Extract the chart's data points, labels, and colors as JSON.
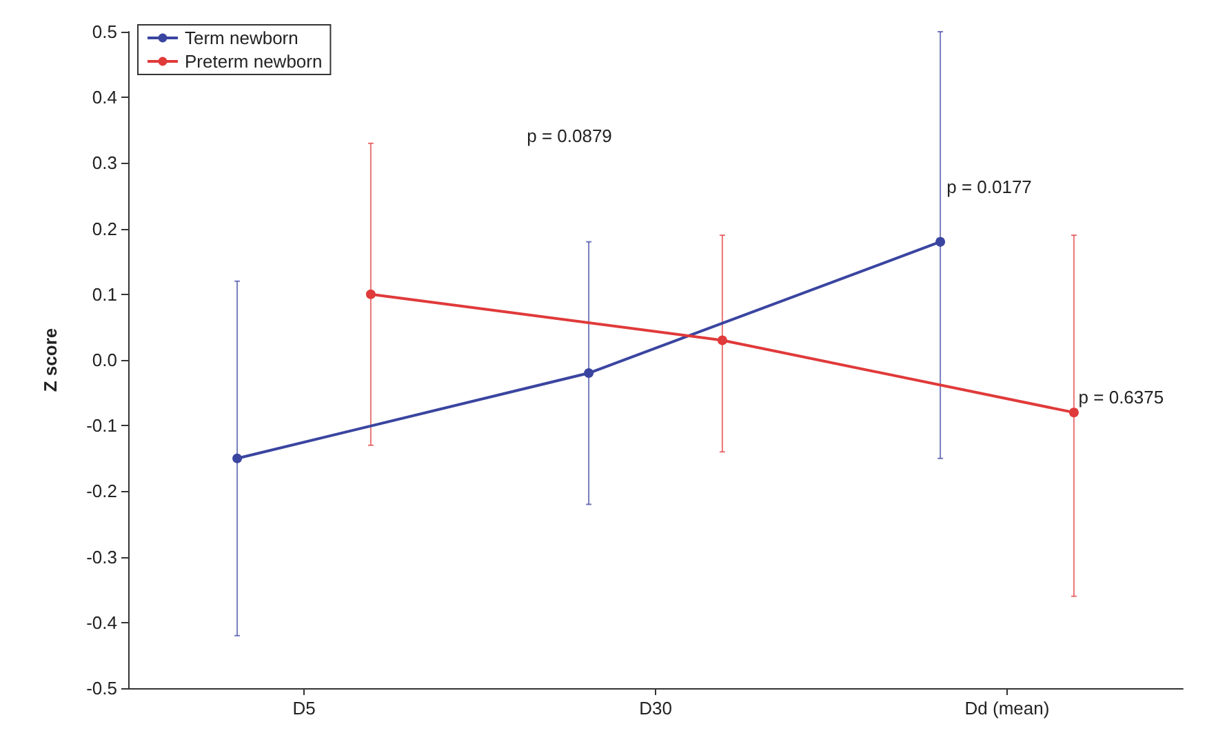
{
  "chart_data": {
    "type": "line",
    "ylabel": "Z score",
    "categories": [
      "D5",
      "D30",
      "Dd (mean)"
    ],
    "series": [
      {
        "name": "Term newborn",
        "color": "#3a45a0",
        "values": [
          -0.15,
          -0.02,
          0.18
        ],
        "errors": [
          [
            -0.42,
            0.12
          ],
          [
            -0.22,
            0.18
          ],
          [
            -0.15,
            0.5
          ]
        ]
      },
      {
        "name": "Preterm newborn",
        "color": "#e03a3a",
        "values": [
          0.1,
          0.03,
          -0.08
        ],
        "errors": [
          [
            -0.13,
            0.33
          ],
          [
            -0.14,
            0.19
          ],
          [
            -0.36,
            0.19
          ]
        ]
      }
    ],
    "ylim": [
      -0.5,
      0.5
    ],
    "yticks": [
      -0.5,
      -0.4,
      -0.3,
      -0.2,
      -0.1,
      {
        "value": 0,
        "label": "0.0"
      },
      0.1,
      0.2,
      0.3,
      0.4,
      0.5
    ],
    "marker": "circle",
    "legend": "top left",
    "grid": false,
    "annotations": [
      "p = 0.0879",
      "p = 0.0177",
      "p = 0.6375"
    ]
  }
}
